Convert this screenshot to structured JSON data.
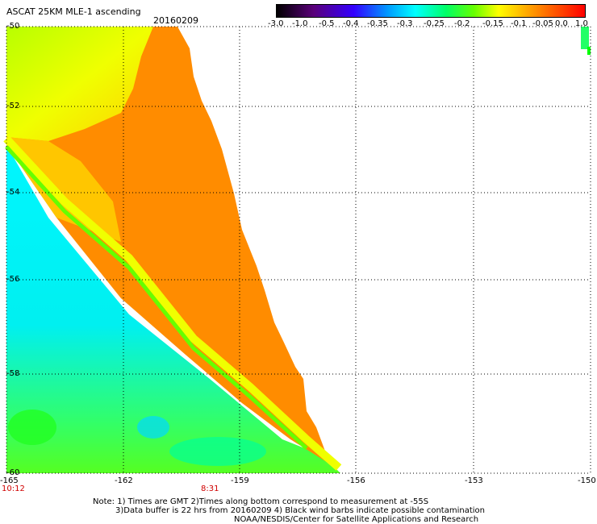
{
  "header": {
    "title": "ASCAT 25KM MLE-1 ascending",
    "date": "20160209"
  },
  "colorbar": {
    "labels": [
      "-3.0",
      "-1.0",
      "-0.5",
      "-0.4",
      "-0.35",
      "-0.3",
      "-0.25",
      "-0.2",
      "-0.15",
      "-0.1",
      "-0.05",
      "0.0",
      "1.0"
    ]
  },
  "axes": {
    "lat_labels": [
      "-50",
      "-52",
      "-54",
      "-56",
      "-58",
      "-60"
    ],
    "lon_labels": [
      "-165",
      "-162",
      "-159",
      "-156",
      "-153",
      "-150"
    ]
  },
  "times": [
    "10:12",
    "8:31"
  ],
  "notes": [
    "Note: 1) Times are GMT 2)Times along bottom correspond to measurement at -55S",
    "3)Data buffer is 22 hrs from 20160209 4) Black wind barbs indicate possible contamination",
    "NOAA/NESDIS/Center for Satellite Applications and Research"
  ],
  "colors": {
    "orange": "#ff8c00",
    "yellow": "#f0ff00",
    "cyan": "#00f0ff",
    "green": "#33ff33"
  }
}
